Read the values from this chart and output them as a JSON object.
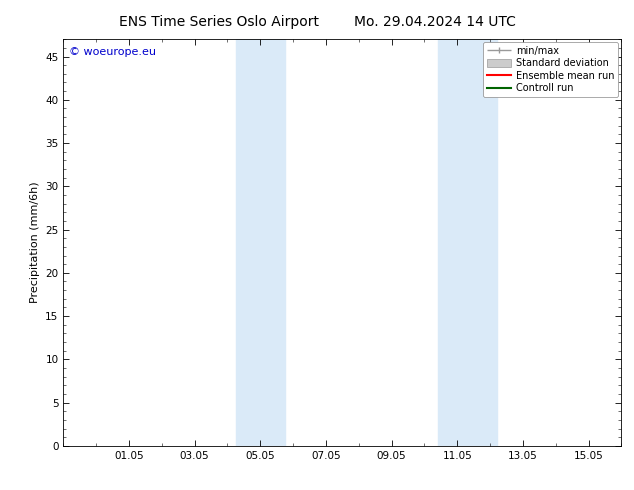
{
  "title_left": "ENS Time Series Oslo Airport",
  "title_right": "Mo. 29.04.2024 14 UTC",
  "ylabel": "Precipitation (mm/6h)",
  "xlabel": "",
  "ylim": [
    0,
    47
  ],
  "yticks": [
    0,
    5,
    10,
    15,
    20,
    25,
    30,
    35,
    40,
    45
  ],
  "xtick_positions": [
    2,
    4,
    6,
    8,
    10,
    12,
    14,
    16
  ],
  "xtick_labels": [
    "01.05",
    "03.05",
    "05.05",
    "07.05",
    "09.05",
    "11.05",
    "13.05",
    "15.05"
  ],
  "xlim": [
    0,
    17
  ],
  "band1_x1": 5.25,
  "band1_x2": 6.75,
  "band2_x1": 11.4,
  "band2_x2": 13.2,
  "shaded_color": "#daeaf8",
  "bg_color": "#ffffff",
  "watermark": "© woeurope.eu",
  "watermark_color": "#0000cc",
  "watermark_fontsize": 8,
  "title_fontsize": 10,
  "tick_fontsize": 7.5,
  "ylabel_fontsize": 8,
  "legend_fontsize": 7,
  "minmax_color": "#999999",
  "std_color": "#cccccc",
  "ensemble_color": "#ff0000",
  "control_color": "#006400"
}
